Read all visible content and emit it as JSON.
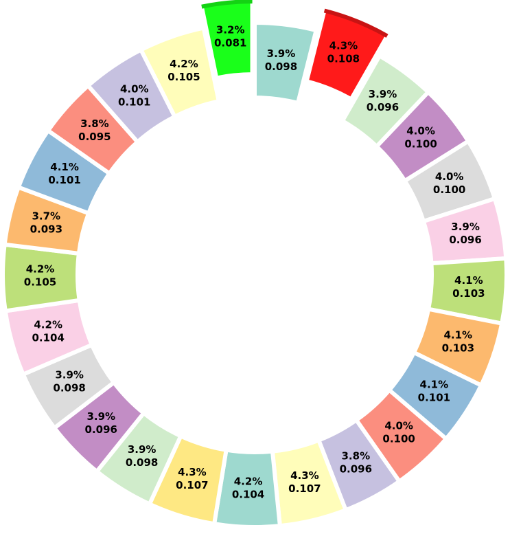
{
  "chart_data": {
    "type": "pie",
    "donut": true,
    "title": "",
    "legend": "none",
    "start_angle_deg": 0,
    "direction": "clockwise",
    "slices": [
      {
        "percent": "3.9%",
        "value": "0.098",
        "color": "#9ED9CF",
        "exploded": false
      },
      {
        "percent": "4.3%",
        "value": "0.108",
        "color": "#FF1A1A",
        "exploded": true
      },
      {
        "percent": "3.9%",
        "value": "0.096",
        "color": "#D0ECCB",
        "exploded": false
      },
      {
        "percent": "4.0%",
        "value": "0.100",
        "color": "#C28DC5",
        "exploded": false
      },
      {
        "percent": "4.0%",
        "value": "0.100",
        "color": "#DCDCDC",
        "exploded": false
      },
      {
        "percent": "3.9%",
        "value": "0.096",
        "color": "#FAD0E6",
        "exploded": false
      },
      {
        "percent": "4.1%",
        "value": "0.103",
        "color": "#BDE07A",
        "exploded": false
      },
      {
        "percent": "4.1%",
        "value": "0.103",
        "color": "#FCB96E",
        "exploded": false
      },
      {
        "percent": "4.1%",
        "value": "0.101",
        "color": "#8FBAD9",
        "exploded": false
      },
      {
        "percent": "4.0%",
        "value": "0.100",
        "color": "#FB8E7F",
        "exploded": false
      },
      {
        "percent": "3.8%",
        "value": "0.096",
        "color": "#C6C1E0",
        "exploded": false
      },
      {
        "percent": "4.3%",
        "value": "0.107",
        "color": "#FFFDBA",
        "exploded": false
      },
      {
        "percent": "4.2%",
        "value": "0.104",
        "color": "#9ED9CF",
        "exploded": false
      },
      {
        "percent": "4.3%",
        "value": "0.107",
        "color": "#FEE883",
        "exploded": false
      },
      {
        "percent": "3.9%",
        "value": "0.098",
        "color": "#D0ECCB",
        "exploded": false
      },
      {
        "percent": "3.9%",
        "value": "0.096",
        "color": "#C28DC5",
        "exploded": false
      },
      {
        "percent": "3.9%",
        "value": "0.098",
        "color": "#DCDCDC",
        "exploded": false
      },
      {
        "percent": "4.2%",
        "value": "0.104",
        "color": "#FAD0E6",
        "exploded": false
      },
      {
        "percent": "4.2%",
        "value": "0.105",
        "color": "#BDE07A",
        "exploded": false
      },
      {
        "percent": "3.7%",
        "value": "0.093",
        "color": "#FCB96E",
        "exploded": false
      },
      {
        "percent": "4.1%",
        "value": "0.101",
        "color": "#8FBAD9",
        "exploded": false
      },
      {
        "percent": "3.8%",
        "value": "0.095",
        "color": "#FB8E7F",
        "exploded": false
      },
      {
        "percent": "4.0%",
        "value": "0.101",
        "color": "#C6C1E0",
        "exploded": false
      },
      {
        "percent": "4.2%",
        "value": "0.105",
        "color": "#FFFDBA",
        "exploded": false
      },
      {
        "percent": "3.2%",
        "value": "0.081",
        "color": "#1AFF1A",
        "exploded": true
      }
    ]
  }
}
